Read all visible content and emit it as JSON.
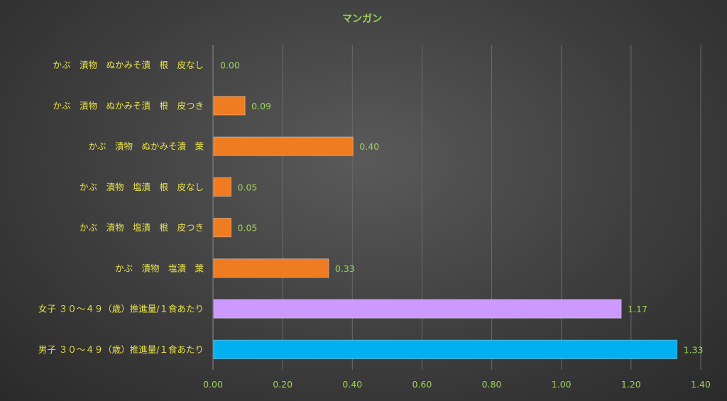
{
  "chart_data": {
    "type": "bar",
    "orientation": "horizontal",
    "title": "マンガン",
    "categories": [
      "かぶ　漬物　ぬかみそ漬　根　皮なし",
      "かぶ　漬物　ぬかみそ漬　根　皮つき",
      "かぶ　漬物　ぬかみそ漬　葉",
      "かぶ　漬物　塩漬　根　皮なし",
      "かぶ　漬物　塩漬　根　皮つき",
      "かぶ　漬物　塩漬　葉",
      "女子 ３０～４９（歳）推進量/１食あたり",
      "男子 ３０～４９（歳）推進量/１食あたり"
    ],
    "values": [
      0.0,
      0.09,
      0.4,
      0.05,
      0.05,
      0.33,
      1.17,
      1.33
    ],
    "value_labels": [
      "0.00",
      "0.09",
      "0.40",
      "0.05",
      "0.05",
      "0.33",
      "1.17",
      "1.33"
    ],
    "bar_colors": [
      "#f07c22",
      "#f07c22",
      "#f07c22",
      "#f07c22",
      "#f07c22",
      "#f07c22",
      "#cc99ff",
      "#00b0f0"
    ],
    "xlim": [
      0,
      1.4
    ],
    "x_ticks": [
      "0.00",
      "0.20",
      "0.40",
      "0.60",
      "0.80",
      "1.00",
      "1.20",
      "1.40"
    ],
    "xlabel": "",
    "ylabel": "",
    "grid": true,
    "legend": "none"
  }
}
